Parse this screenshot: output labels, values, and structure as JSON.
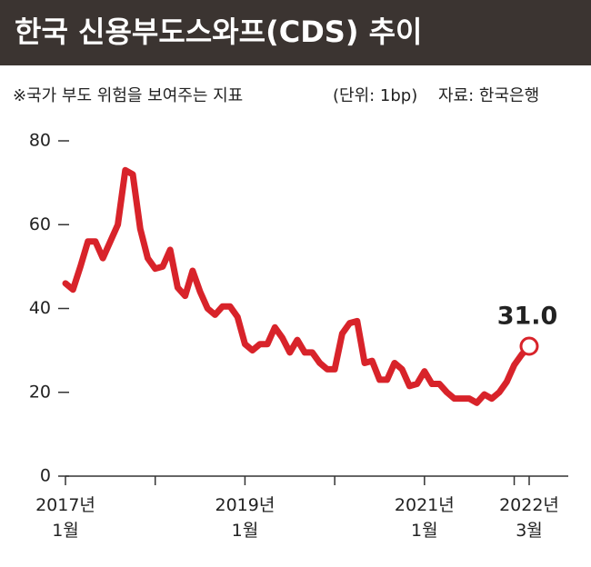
{
  "chart_data": {
    "type": "line",
    "title": "한국 신용부도스와프(CDS) 추이",
    "subtitle": "※국가 부도 위험을 보여주는 지표",
    "unit": "(단위: 1bp)",
    "source": "자료: 한국은행",
    "categories": [
      "2017년 1월",
      null,
      null,
      null,
      null,
      null,
      null,
      null,
      null,
      null,
      null,
      null,
      null,
      null,
      null,
      null,
      null,
      null,
      null,
      null,
      null,
      null,
      null,
      null,
      "2019년 1월",
      null,
      null,
      null,
      null,
      null,
      null,
      null,
      null,
      null,
      null,
      null,
      null,
      null,
      null,
      null,
      null,
      null,
      null,
      null,
      null,
      null,
      null,
      null,
      "2021년 1월",
      null,
      null,
      null,
      null,
      null,
      null,
      null,
      null,
      null,
      null,
      null,
      null,
      null,
      "2022년 3월"
    ],
    "values": [
      46,
      44.5,
      50,
      56,
      56,
      52,
      56,
      60,
      73,
      72,
      59,
      52,
      49.5,
      50,
      54,
      45,
      43,
      49,
      44,
      40,
      38.5,
      40.5,
      40.5,
      38,
      31.5,
      30,
      31.5,
      31.5,
      35.5,
      33,
      29.5,
      32.5,
      29.5,
      29.5,
      27,
      25.5,
      25.5,
      34,
      36.5,
      37,
      27,
      27.5,
      23,
      23,
      27,
      25.5,
      21.5,
      22,
      25,
      22,
      22,
      20,
      18.5,
      18.5,
      18.5,
      17.5,
      19.5,
      18.5,
      20,
      22.5,
      26.5,
      29,
      31
    ],
    "value_labels": [
      null,
      null,
      null,
      null,
      null,
      null,
      null,
      null,
      null,
      null,
      null,
      null,
      null,
      null,
      null,
      null,
      null,
      null,
      null,
      null,
      null,
      null,
      null,
      null,
      null,
      null,
      null,
      null,
      null,
      null,
      null,
      null,
      null,
      null,
      null,
      null,
      null,
      null,
      null,
      null,
      null,
      null,
      null,
      null,
      null,
      null,
      null,
      null,
      null,
      null,
      null,
      null,
      null,
      null,
      null,
      null,
      null,
      null,
      null,
      null,
      null,
      null,
      "31.0"
    ],
    "color": "#d8232a",
    "ylim": [
      0,
      80
    ],
    "yticks": [
      0,
      20,
      40,
      60,
      80
    ],
    "grid": false
  }
}
